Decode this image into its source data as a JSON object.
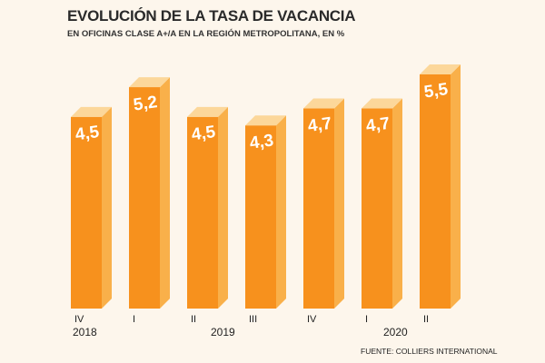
{
  "title": "EVOLUCIÓN DE LA TASA DE VACANCIA",
  "subtitle": "EN OFICINAS CLASE A+/A EN LA REGIÓN METROPOLITANA, EN %",
  "source": "FUENTE: COLLIERS INTERNATIONAL",
  "colors": {
    "front": "#f7911d",
    "side": "#f9b04a",
    "top": "#fcd79a",
    "label": "#ffffff",
    "axis_text": "#222222",
    "background": "#fdf6ec"
  },
  "chart_data": {
    "type": "bar",
    "categories": [
      "IV",
      "I",
      "II",
      "III",
      "IV",
      "I",
      "II"
    ],
    "years": [
      {
        "label": "2018",
        "category_index": 0
      },
      {
        "label": "2019",
        "category_index": 2
      },
      {
        "label": "2020",
        "category_index": 5
      }
    ],
    "values": [
      4.5,
      5.2,
      4.5,
      4.3,
      4.7,
      4.7,
      5.5
    ],
    "value_labels": [
      "4,5",
      "5,2",
      "4,5",
      "4,3",
      "4,7",
      "4,7",
      "5,5"
    ],
    "grid": false,
    "legend": "none"
  }
}
